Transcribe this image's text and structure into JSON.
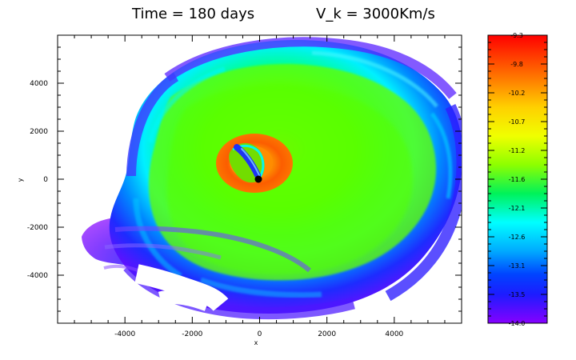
{
  "title": {
    "time": "Time = 180 days",
    "velocity": "V_k = 3000Km/s"
  },
  "axes": {
    "xlabel": "x",
    "ylabel": "y",
    "x_ticks": [
      "-4000",
      "-2000",
      "0",
      "2000",
      "4000"
    ],
    "y_ticks": [
      "4000",
      "2000",
      "0",
      "-2000",
      "-4000"
    ]
  },
  "colorbar": {
    "labels": [
      "-9.3",
      "-9.8",
      "-10.2",
      "-10.7",
      "-11.2",
      "-11.6",
      "-12.1",
      "-12.6",
      "-13.1",
      "-13.5",
      "-14.0"
    ],
    "stops": [
      "#ff0000",
      "#ff6600",
      "#ffcc00",
      "#eeff00",
      "#88ff00",
      "#00ee44",
      "#00ffee",
      "#00aaff",
      "#0044ff",
      "#2222ff",
      "#8800ff"
    ]
  },
  "chart_data": {
    "type": "heatmap",
    "title": "Time = 180 days V_k = 3000Km/s",
    "xlabel": "x",
    "ylabel": "y",
    "xlim": [
      -6000,
      6000
    ],
    "ylim": [
      -6000,
      6000
    ],
    "colorbar_range": [
      -14.0,
      -9.3
    ]
  }
}
